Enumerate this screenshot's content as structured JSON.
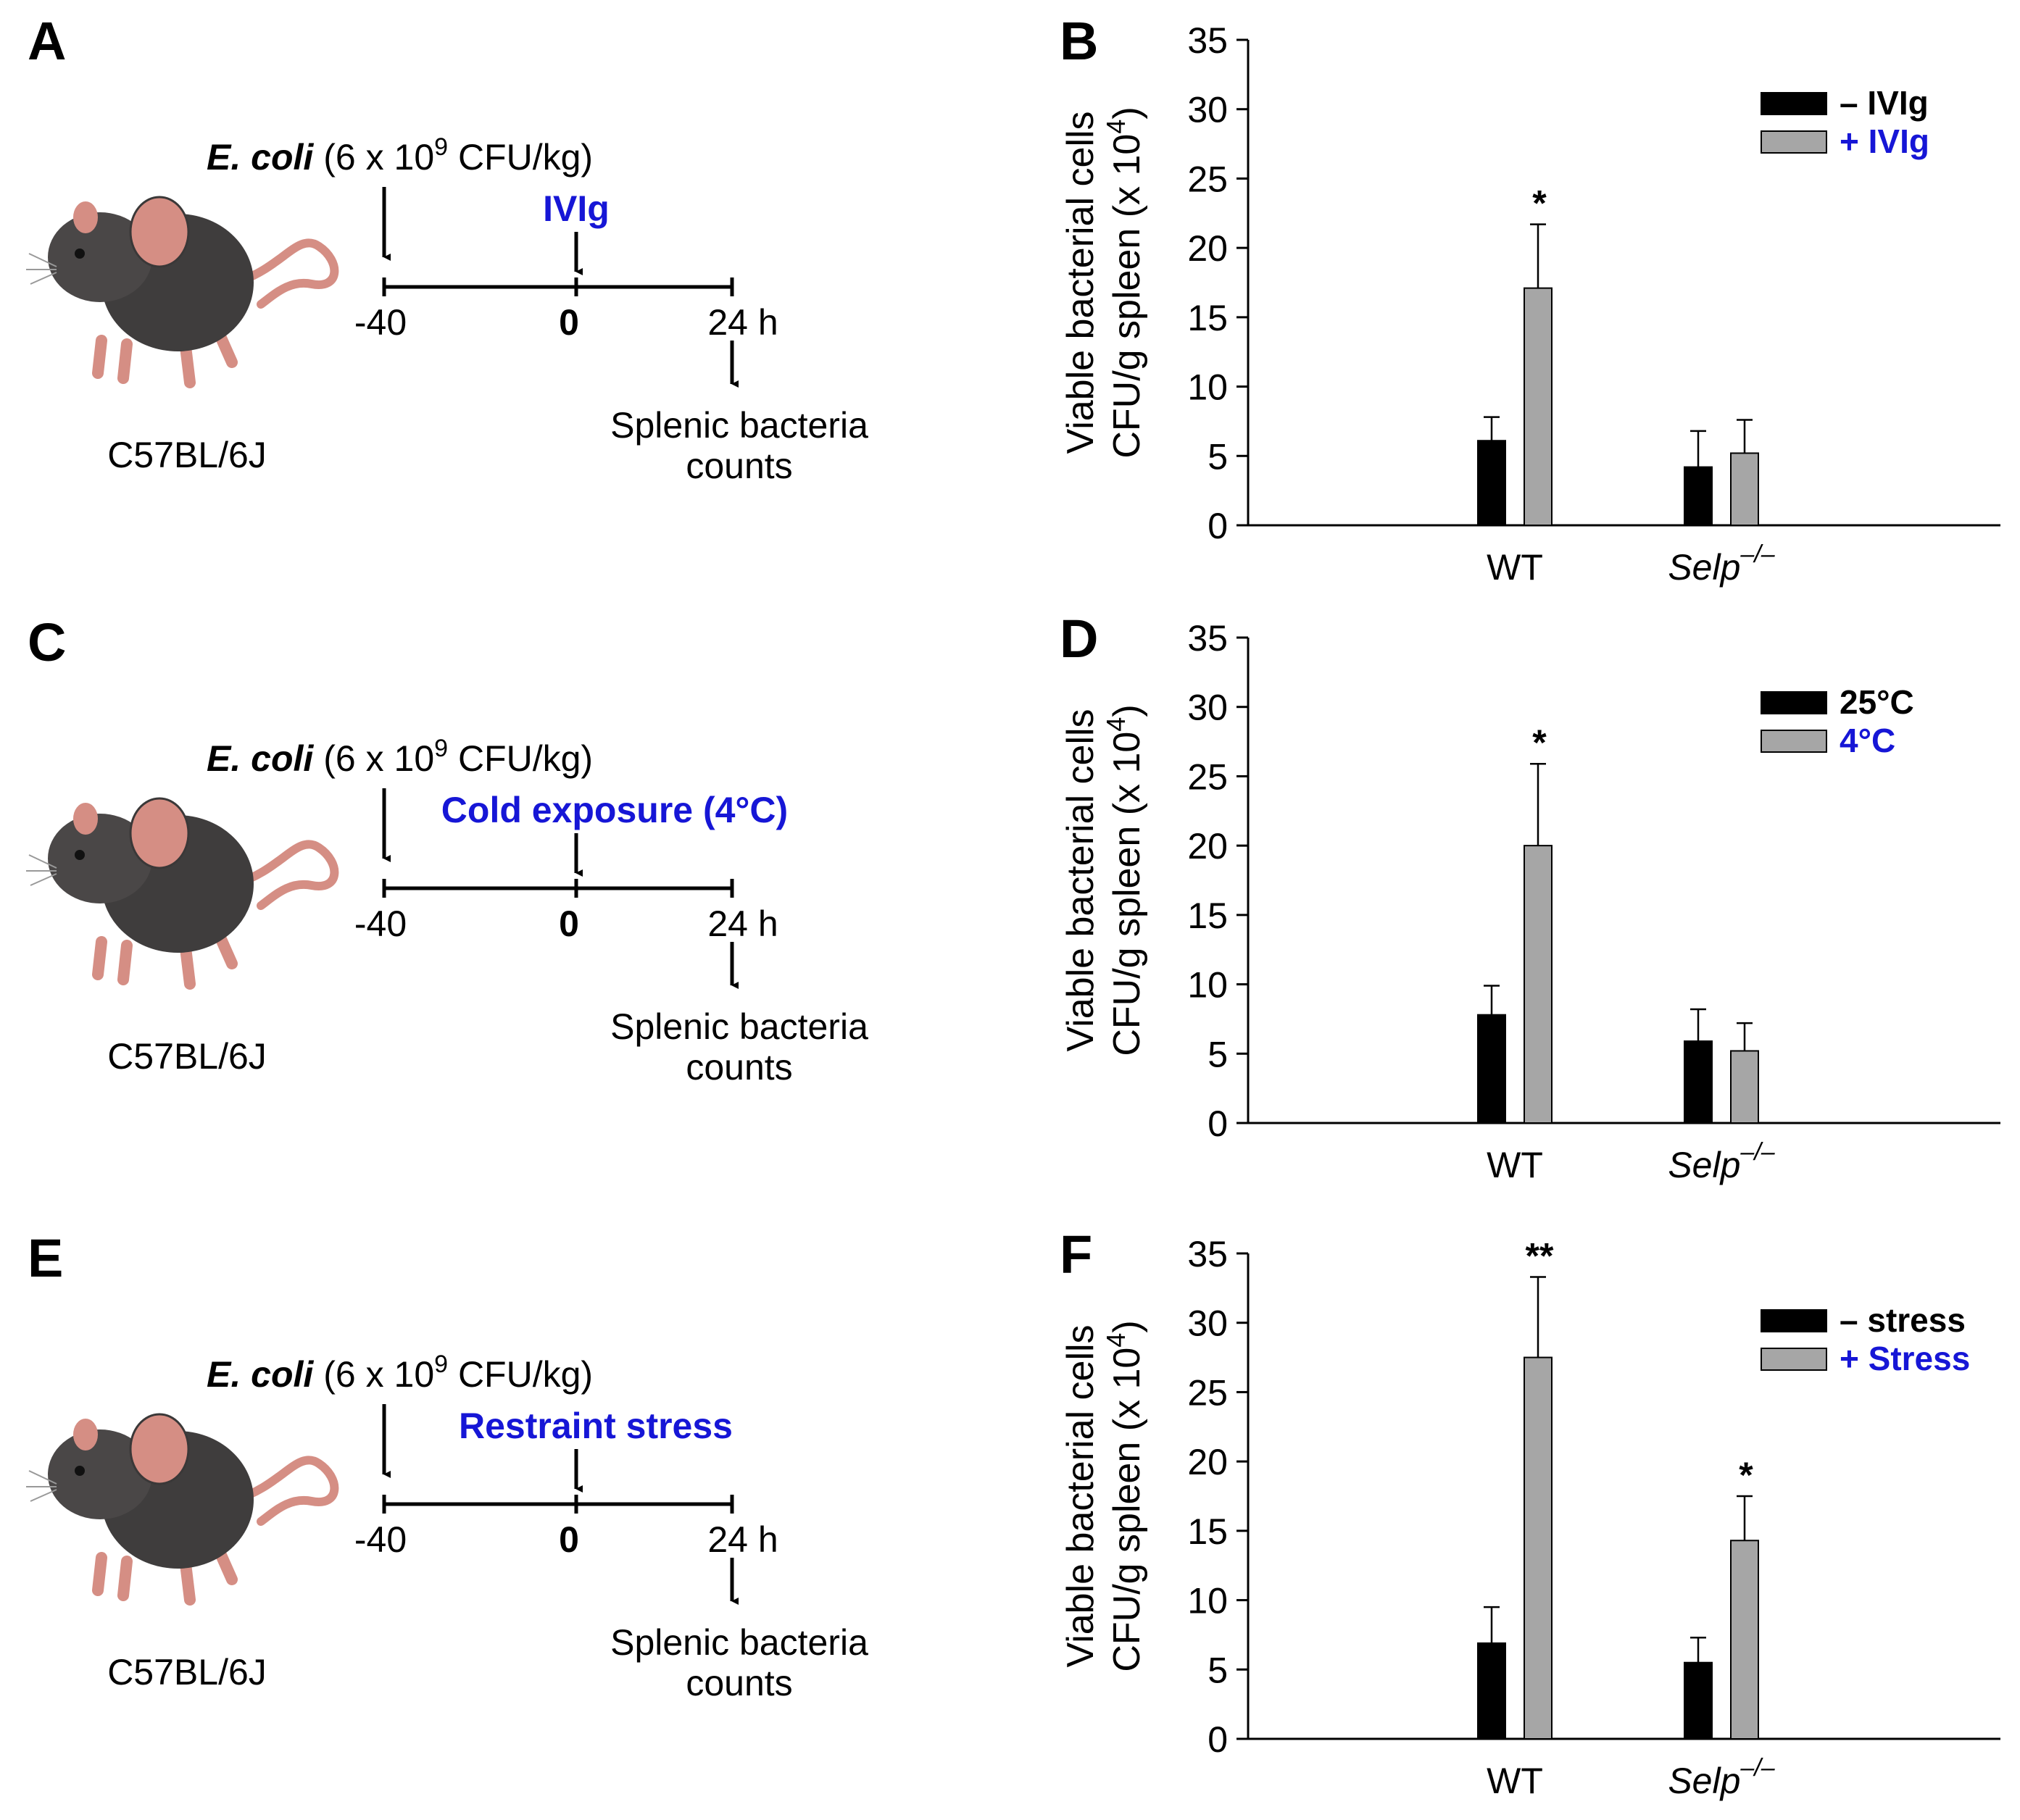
{
  "colors": {
    "bar_control": "#000000",
    "bar_treated": "#a6a6a6",
    "accent_blue": "#1616d6",
    "mouse_body": "#3f3d3d",
    "mouse_skin": "#d58e84"
  },
  "panels": [
    {
      "letter": "A",
      "strain": "C57BL/6J",
      "ecoli_label": "E. coli",
      "dose_pre": "(6 x 10",
      "dose_exp": "9",
      "dose_post": " CFU/kg)",
      "treatment": "IVIg",
      "time_start": "-40",
      "time_zero": "0",
      "time_end": "24 h",
      "readout_line1": "Splenic bacteria",
      "readout_line2": "counts"
    },
    {
      "letter": "C",
      "strain": "C57BL/6J",
      "ecoli_label": "E. coli",
      "dose_pre": "(6 x 10",
      "dose_exp": "9",
      "dose_post": " CFU/kg)",
      "treatment": "Cold exposure (4°C)",
      "time_start": "-40",
      "time_zero": "0",
      "time_end": "24 h",
      "readout_line1": "Splenic bacteria",
      "readout_line2": "counts"
    },
    {
      "letter": "E",
      "strain": "C57BL/6J",
      "ecoli_label": "E. coli",
      "dose_pre": "(6 x 10",
      "dose_exp": "9",
      "dose_post": " CFU/kg)",
      "treatment": "Restraint stress",
      "time_start": "-40",
      "time_zero": "0",
      "time_end": "24 h",
      "readout_line1": "Splenic bacteria",
      "readout_line2": "counts"
    }
  ],
  "chart_data": [
    {
      "letter": "B",
      "type": "bar",
      "ylabel_line1": "Viable bacterial cells",
      "ylabel_line2": "CFU/g spleen (x 10",
      "ylabel_exp": "4",
      "ylabel_close": ")",
      "ylim": [
        0,
        35
      ],
      "yticks": [
        0,
        5,
        10,
        15,
        20,
        25,
        30,
        35
      ],
      "categories": [
        "WT",
        "Selp"
      ],
      "category_superscript": [
        "",
        "–/–"
      ],
      "series": [
        {
          "name": "–  IVIg",
          "values": [
            6.1,
            4.2
          ],
          "errors": [
            1.7,
            2.6
          ]
        },
        {
          "name": "+ IVIg",
          "values": [
            17.1,
            5.2
          ],
          "errors": [
            4.6,
            2.4
          ]
        }
      ],
      "annotations": [
        {
          "category": 0,
          "series": 1,
          "text": "*"
        }
      ],
      "legend": "top-right"
    },
    {
      "letter": "D",
      "type": "bar",
      "ylabel_line1": "Viable bacterial cells",
      "ylabel_line2": "CFU/g spleen (x 10",
      "ylabel_exp": "4",
      "ylabel_close": ")",
      "ylim": [
        0,
        35
      ],
      "yticks": [
        0,
        5,
        10,
        15,
        20,
        25,
        30,
        35
      ],
      "categories": [
        "WT",
        "Selp"
      ],
      "category_superscript": [
        "",
        "–/–"
      ],
      "series": [
        {
          "name": "25°C",
          "values": [
            7.8,
            5.9
          ],
          "errors": [
            2.1,
            2.3
          ]
        },
        {
          "name": "4°C",
          "values": [
            20.0,
            5.2
          ],
          "errors": [
            5.9,
            2.0
          ]
        }
      ],
      "annotations": [
        {
          "category": 0,
          "series": 1,
          "text": "*"
        }
      ],
      "legend": "top-right"
    },
    {
      "letter": "F",
      "type": "bar",
      "ylabel_line1": "Viable bacterial cells",
      "ylabel_line2": "CFU/g spleen (x 10",
      "ylabel_exp": "4",
      "ylabel_close": ")",
      "ylim": [
        0,
        35
      ],
      "yticks": [
        0,
        5,
        10,
        15,
        20,
        25,
        30,
        35
      ],
      "categories": [
        "WT",
        "Selp"
      ],
      "category_superscript": [
        "",
        "–/–"
      ],
      "series": [
        {
          "name": "–  stress",
          "values": [
            6.9,
            5.5
          ],
          "errors": [
            2.6,
            1.8
          ]
        },
        {
          "name": "+ Stress",
          "values": [
            27.5,
            14.3
          ],
          "errors": [
            5.8,
            3.2
          ]
        }
      ],
      "annotations": [
        {
          "category": 0,
          "series": 1,
          "text": "**"
        },
        {
          "category": 1,
          "series": 1,
          "text": "*"
        }
      ],
      "legend": "top-right"
    }
  ]
}
